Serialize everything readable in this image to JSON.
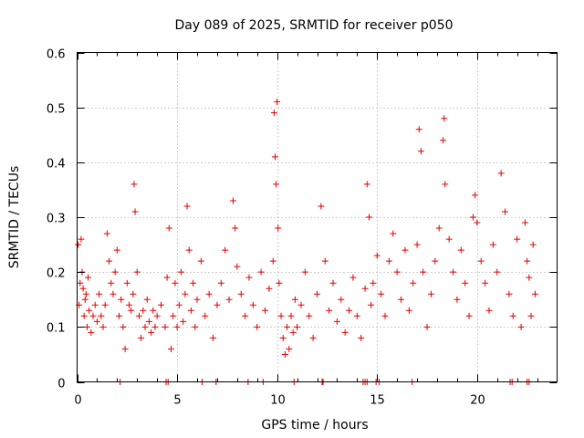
{
  "chart_data": {
    "type": "scatter",
    "title": "Day 089 of 2025, SRMTID for receiver p050",
    "xlabel": "GPS time / hours",
    "ylabel": "SRMTID / TECUs",
    "xlim": [
      0,
      24
    ],
    "ylim": [
      0,
      0.6
    ],
    "xticks": [
      0,
      5,
      10,
      15,
      20
    ],
    "xtick_labels": [
      "0",
      "5",
      "10",
      "15",
      "20"
    ],
    "yticks": [
      0,
      0.1,
      0.2,
      0.3,
      0.4,
      0.5,
      0.6
    ],
    "ytick_labels": [
      "0",
      "0.1",
      "0.2",
      "0.3",
      "0.4",
      "0.5",
      "0.6"
    ],
    "grid": true,
    "marker": "+",
    "color": "#e00000",
    "series": [
      {
        "name": "SRMTID",
        "points": [
          [
            0.05,
            0.25
          ],
          [
            0.1,
            0.14
          ],
          [
            0.15,
            0.18
          ],
          [
            0.2,
            0.26
          ],
          [
            0.25,
            0.2
          ],
          [
            0.3,
            0.17
          ],
          [
            0.35,
            0.12
          ],
          [
            0.4,
            0.15
          ],
          [
            0.45,
            0.16
          ],
          [
            0.5,
            0.1
          ],
          [
            0.55,
            0.19
          ],
          [
            0.6,
            0.13
          ],
          [
            0.7,
            0.09
          ],
          [
            0.8,
            0.12
          ],
          [
            0.9,
            0.14
          ],
          [
            1.0,
            0.11
          ],
          [
            1.1,
            0.16
          ],
          [
            1.2,
            0.12
          ],
          [
            1.3,
            0.1
          ],
          [
            1.4,
            0.14
          ],
          [
            1.5,
            0.27
          ],
          [
            1.6,
            0.22
          ],
          [
            1.7,
            0.18
          ],
          [
            1.8,
            0.16
          ],
          [
            1.9,
            0.2
          ],
          [
            2.0,
            0.24
          ],
          [
            2.1,
            0.12
          ],
          [
            2.2,
            0.15
          ],
          [
            2.3,
            0.1
          ],
          [
            2.4,
            0.06
          ],
          [
            2.5,
            0.18
          ],
          [
            2.6,
            0.14
          ],
          [
            2.7,
            0.13
          ],
          [
            2.8,
            0.16
          ],
          [
            2.85,
            0.36
          ],
          [
            2.9,
            0.31
          ],
          [
            3.0,
            0.2
          ],
          [
            3.1,
            0.12
          ],
          [
            3.2,
            0.08
          ],
          [
            3.3,
            0.13
          ],
          [
            3.4,
            0.1
          ],
          [
            3.5,
            0.15
          ],
          [
            3.6,
            0.11
          ],
          [
            3.7,
            0.09
          ],
          [
            3.8,
            0.13
          ],
          [
            3.9,
            0.1
          ],
          [
            4.0,
            0.12
          ],
          [
            4.2,
            0.14
          ],
          [
            4.4,
            0.1
          ],
          [
            4.5,
            0.19
          ],
          [
            4.6,
            0.28
          ],
          [
            4.7,
            0.06
          ],
          [
            4.8,
            0.12
          ],
          [
            4.9,
            0.18
          ],
          [
            5.0,
            0.1
          ],
          [
            5.1,
            0.14
          ],
          [
            5.2,
            0.2
          ],
          [
            5.3,
            0.11
          ],
          [
            5.4,
            0.16
          ],
          [
            5.5,
            0.32
          ],
          [
            5.6,
            0.24
          ],
          [
            5.7,
            0.13
          ],
          [
            5.8,
            0.18
          ],
          [
            5.9,
            0.1
          ],
          [
            6.0,
            0.15
          ],
          [
            6.2,
            0.22
          ],
          [
            6.4,
            0.12
          ],
          [
            6.6,
            0.16
          ],
          [
            6.8,
            0.08
          ],
          [
            7.0,
            0.14
          ],
          [
            7.2,
            0.18
          ],
          [
            7.4,
            0.24
          ],
          [
            7.6,
            0.15
          ],
          [
            7.8,
            0.33
          ],
          [
            7.9,
            0.28
          ],
          [
            8.0,
            0.21
          ],
          [
            8.2,
            0.16
          ],
          [
            8.4,
            0.12
          ],
          [
            8.6,
            0.19
          ],
          [
            8.8,
            0.14
          ],
          [
            9.0,
            0.1
          ],
          [
            9.2,
            0.2
          ],
          [
            9.4,
            0.13
          ],
          [
            9.6,
            0.17
          ],
          [
            9.8,
            0.22
          ],
          [
            9.85,
            0.49
          ],
          [
            9.9,
            0.41
          ],
          [
            9.95,
            0.36
          ],
          [
            10.0,
            0.51
          ],
          [
            10.05,
            0.28
          ],
          [
            10.1,
            0.18
          ],
          [
            10.2,
            0.12
          ],
          [
            10.3,
            0.08
          ],
          [
            10.4,
            0.05
          ],
          [
            10.5,
            0.1
          ],
          [
            10.6,
            0.06
          ],
          [
            10.7,
            0.12
          ],
          [
            10.8,
            0.09
          ],
          [
            10.9,
            0.15
          ],
          [
            11.0,
            0.1
          ],
          [
            11.2,
            0.14
          ],
          [
            11.4,
            0.2
          ],
          [
            11.6,
            0.12
          ],
          [
            11.8,
            0.08
          ],
          [
            12.0,
            0.16
          ],
          [
            12.2,
            0.32
          ],
          [
            12.4,
            0.22
          ],
          [
            12.6,
            0.13
          ],
          [
            12.8,
            0.18
          ],
          [
            13.0,
            0.11
          ],
          [
            13.2,
            0.15
          ],
          [
            13.4,
            0.09
          ],
          [
            13.6,
            0.13
          ],
          [
            13.8,
            0.19
          ],
          [
            14.0,
            0.12
          ],
          [
            14.2,
            0.08
          ],
          [
            14.4,
            0.17
          ],
          [
            14.5,
            0.36
          ],
          [
            14.6,
            0.3
          ],
          [
            14.7,
            0.14
          ],
          [
            14.8,
            0.18
          ],
          [
            15.0,
            0.23
          ],
          [
            15.2,
            0.16
          ],
          [
            15.4,
            0.12
          ],
          [
            15.6,
            0.22
          ],
          [
            15.8,
            0.27
          ],
          [
            16.0,
            0.2
          ],
          [
            16.2,
            0.15
          ],
          [
            16.4,
            0.24
          ],
          [
            16.6,
            0.13
          ],
          [
            16.8,
            0.18
          ],
          [
            17.0,
            0.25
          ],
          [
            17.1,
            0.46
          ],
          [
            17.2,
            0.42
          ],
          [
            17.3,
            0.2
          ],
          [
            17.5,
            0.1
          ],
          [
            17.7,
            0.16
          ],
          [
            17.9,
            0.22
          ],
          [
            18.1,
            0.28
          ],
          [
            18.3,
            0.44
          ],
          [
            18.35,
            0.48
          ],
          [
            18.4,
            0.36
          ],
          [
            18.6,
            0.26
          ],
          [
            18.8,
            0.2
          ],
          [
            19.0,
            0.15
          ],
          [
            19.2,
            0.24
          ],
          [
            19.4,
            0.18
          ],
          [
            19.6,
            0.12
          ],
          [
            19.8,
            0.3
          ],
          [
            19.9,
            0.34
          ],
          [
            20.0,
            0.29
          ],
          [
            20.2,
            0.22
          ],
          [
            20.4,
            0.18
          ],
          [
            20.6,
            0.13
          ],
          [
            20.8,
            0.25
          ],
          [
            21.0,
            0.2
          ],
          [
            21.2,
            0.38
          ],
          [
            21.4,
            0.31
          ],
          [
            21.6,
            0.16
          ],
          [
            21.8,
            0.12
          ],
          [
            22.0,
            0.26
          ],
          [
            22.2,
            0.1
          ],
          [
            22.4,
            0.29
          ],
          [
            22.5,
            0.22
          ],
          [
            22.6,
            0.19
          ],
          [
            22.7,
            0.12
          ],
          [
            22.8,
            0.25
          ],
          [
            22.9,
            0.16
          ]
        ],
        "zero_points": [
          2.15,
          4.45,
          4.55,
          6.25,
          6.95,
          8.55,
          9.3,
          10.85,
          12.25,
          12.3,
          14.3,
          14.4,
          14.5,
          14.95,
          15.1,
          16.75,
          21.65,
          21.75,
          22.5,
          22.6
        ]
      }
    ]
  }
}
